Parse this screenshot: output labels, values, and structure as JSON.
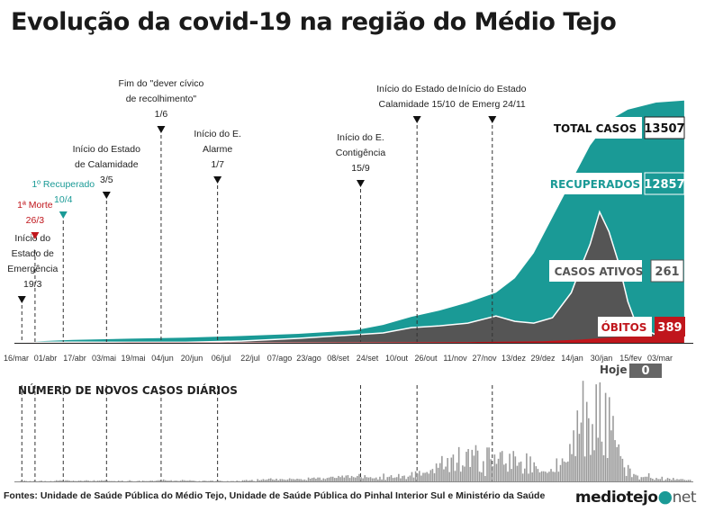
{
  "title": "Evolução da covid-19 na região do Médio Tejo",
  "source": "Fontes: Unidade de Saúde Pública do Médio Tejo, Unidade de Saúde Pública do Pinhal Interior Sul e Ministério da Saúde",
  "logo": {
    "name": "mediotejo",
    "dot": "●",
    "suffix": "net"
  },
  "colors": {
    "recovered": "#1a9a96",
    "active": "#555555",
    "deaths": "#c0161c",
    "daily_bars": "#9a9a9a",
    "marker": "#111111"
  },
  "chart_data": [
    {
      "type": "area",
      "title": "Evolução da covid-19 na região do Médio Tejo",
      "xlabel": "",
      "ylabel": "",
      "x_tick_labels": [
        "16/mar",
        "01/abr",
        "17/abr",
        "03/mai",
        "19/mai",
        "04/jun",
        "20/jun",
        "06/jul",
        "22/jul",
        "07/ago",
        "23/ago",
        "08/set",
        "24/set",
        "10/out",
        "26/out",
        "11/nov",
        "27/nov",
        "13/dez",
        "29/dez",
        "14/jan",
        "30/jan",
        "15/fev",
        "03/mar"
      ],
      "ylim": [
        0,
        14000
      ],
      "series": [
        {
          "name": "Total casos",
          "color": "#1a9a96",
          "x_day": [
            0,
            30,
            60,
            90,
            120,
            150,
            180,
            195,
            210,
            225,
            240,
            255,
            265,
            275,
            285,
            295,
            305,
            315,
            325,
            340,
            355
          ],
          "values": [
            40,
            160,
            230,
            290,
            380,
            500,
            700,
            1000,
            1450,
            1800,
            2250,
            2800,
            3600,
            5000,
            7000,
            9000,
            11000,
            12400,
            13000,
            13400,
            13507
          ]
        },
        {
          "name": "Casos ativos",
          "color": "#555555",
          "x_day": [
            0,
            30,
            60,
            90,
            120,
            150,
            180,
            195,
            210,
            225,
            240,
            255,
            265,
            275,
            285,
            295,
            300,
            305,
            310,
            315,
            320,
            325,
            330,
            340,
            355
          ],
          "values": [
            35,
            40,
            30,
            30,
            100,
            250,
            450,
            550,
            850,
            950,
            1100,
            1500,
            1200,
            1100,
            1400,
            2800,
            4200,
            5500,
            7300,
            6200,
            4500,
            2300,
            900,
            450,
            261
          ]
        },
        {
          "name": "Óbitos",
          "color": "#c0161c",
          "x_day": [
            0,
            60,
            120,
            180,
            240,
            280,
            300,
            320,
            340,
            355
          ],
          "values": [
            0,
            8,
            15,
            25,
            45,
            90,
            180,
            330,
            380,
            389
          ]
        }
      ],
      "totals": {
        "total_casos": {
          "label": "TOTAL CASOS",
          "value": "13507"
        },
        "recuperados": {
          "label": "RECUPERADOS",
          "value": "12857"
        },
        "casos_ativos": {
          "label": "CASOS ATIVOS",
          "value": "261"
        },
        "obitos": {
          "label": "ÓBITOS",
          "value": "389"
        }
      },
      "events": [
        {
          "day": 3,
          "color": "dark",
          "lines": [
            "Início do",
            "Estado de",
            "Emergência",
            "19/3"
          ]
        },
        {
          "day": 10,
          "color": "red",
          "lines": [
            "1ª Morte",
            "26/3"
          ]
        },
        {
          "day": 25,
          "color": "teal",
          "lines": [
            "1º Recuperado",
            "10/4"
          ]
        },
        {
          "day": 48,
          "color": "dark",
          "lines": [
            "Início do Estado",
            "de Calamidade",
            "3/5"
          ]
        },
        {
          "day": 77,
          "color": "dark",
          "lines": [
            "Fim do \"dever cívico",
            "de recolhimento\"",
            "1/6"
          ]
        },
        {
          "day": 107,
          "color": "dark",
          "lines": [
            "Início do E.",
            "Alarme",
            "1/7"
          ]
        },
        {
          "day": 183,
          "color": "dark",
          "lines": [
            "Início do E.",
            "Contigência",
            "15/9"
          ]
        },
        {
          "day": 213,
          "color": "dark",
          "lines": [
            "Início do Estado de",
            "Calamidade 15/10"
          ]
        },
        {
          "day": 253,
          "color": "dark",
          "lines": [
            "Início do Estado",
            "de Emerg 24/11"
          ]
        }
      ]
    },
    {
      "type": "bar",
      "title": "NÚMERO DE NOVOS CASOS DIÁRIOS",
      "today_label": "Hoje",
      "today_value": "0",
      "ylim": [
        0,
        300
      ],
      "values": [
        0,
        0,
        1,
        0,
        2,
        1,
        0,
        1,
        0,
        1,
        0,
        0,
        1,
        2,
        0,
        1,
        0,
        0,
        1,
        0,
        1,
        3,
        2,
        3,
        2,
        1,
        3,
        3,
        2,
        1,
        2,
        1,
        1,
        2,
        2,
        1,
        2,
        3,
        2,
        1,
        1,
        3,
        1,
        2,
        2,
        3,
        2,
        3,
        2,
        1,
        1,
        1,
        1,
        0,
        2,
        1,
        2,
        0,
        0,
        1,
        3,
        1,
        0,
        0,
        1,
        2,
        0,
        2,
        1,
        1,
        1,
        2,
        2,
        1,
        2,
        3,
        3,
        3,
        5,
        3,
        2,
        2,
        3,
        1,
        2,
        2,
        1,
        2,
        4,
        3,
        2,
        2,
        3,
        2,
        2,
        1,
        0,
        1,
        0,
        2,
        2,
        1,
        1,
        2,
        2,
        0,
        1,
        2,
        2,
        1,
        0,
        0,
        1,
        0,
        1,
        1,
        0,
        2,
        1,
        0,
        3,
        3,
        4,
        2,
        3,
        4,
        1,
        0,
        6,
        3,
        4,
        6,
        4,
        5,
        7,
        8,
        5,
        4,
        7,
        3,
        6,
        6,
        5,
        4,
        5,
        8,
        6,
        6,
        5,
        7,
        6,
        6,
        4,
        5,
        3,
        10,
        7,
        9,
        10,
        7,
        10,
        10,
        4,
        8,
        6,
        9,
        10,
        12,
        12,
        9,
        9,
        14,
        11,
        15,
        10,
        15,
        16,
        9,
        14,
        11,
        10,
        14,
        19,
        11,
        8,
        16,
        11,
        10,
        11,
        8,
        8,
        10,
        5,
        12,
        5,
        20,
        4,
        11,
        12,
        16,
        9,
        10,
        11,
        19,
        8,
        14,
        15,
        6,
        12,
        15,
        24,
        10,
        26,
        20,
        27,
        15,
        22,
        22,
        24,
        20,
        29,
        32,
        21,
        46,
        35,
        47,
        65,
        31,
        38,
        60,
        24,
        61,
        69,
        27,
        48,
        88,
        25,
        41,
        38,
        76,
        83,
        37,
        81,
        66,
        93,
        79,
        25,
        23,
        52,
        14,
        87,
        87,
        57,
        39,
        69,
        45,
        58,
        75,
        78,
        43,
        46,
        25,
        71,
        32,
        78,
        64,
        40,
        49,
        51,
        20,
        33,
        72,
        20,
        64,
        23,
        49,
        39,
        32,
        23,
        26,
        26,
        25,
        22,
        25,
        32,
        25,
        24,
        59,
        25,
        42,
        59,
        51,
        49,
        51,
        96,
        70,
        131,
        65,
        182,
        122,
        151,
        258,
        64,
        204,
        162,
        68,
        147,
        80,
        249,
        112,
        254,
        102,
        67,
        227,
        60,
        216,
        131,
        168,
        106,
        88,
        95,
        65,
        58,
        36,
        14,
        42,
        33,
        11,
        19,
        17,
        15,
        5,
        11,
        11,
        12,
        12,
        21,
        9,
        7,
        4,
        9,
        6,
        6,
        12,
        2,
        5,
        9,
        7,
        4,
        9,
        4,
        6,
        5,
        6,
        6,
        4,
        3,
        4,
        4,
        0
      ]
    }
  ]
}
